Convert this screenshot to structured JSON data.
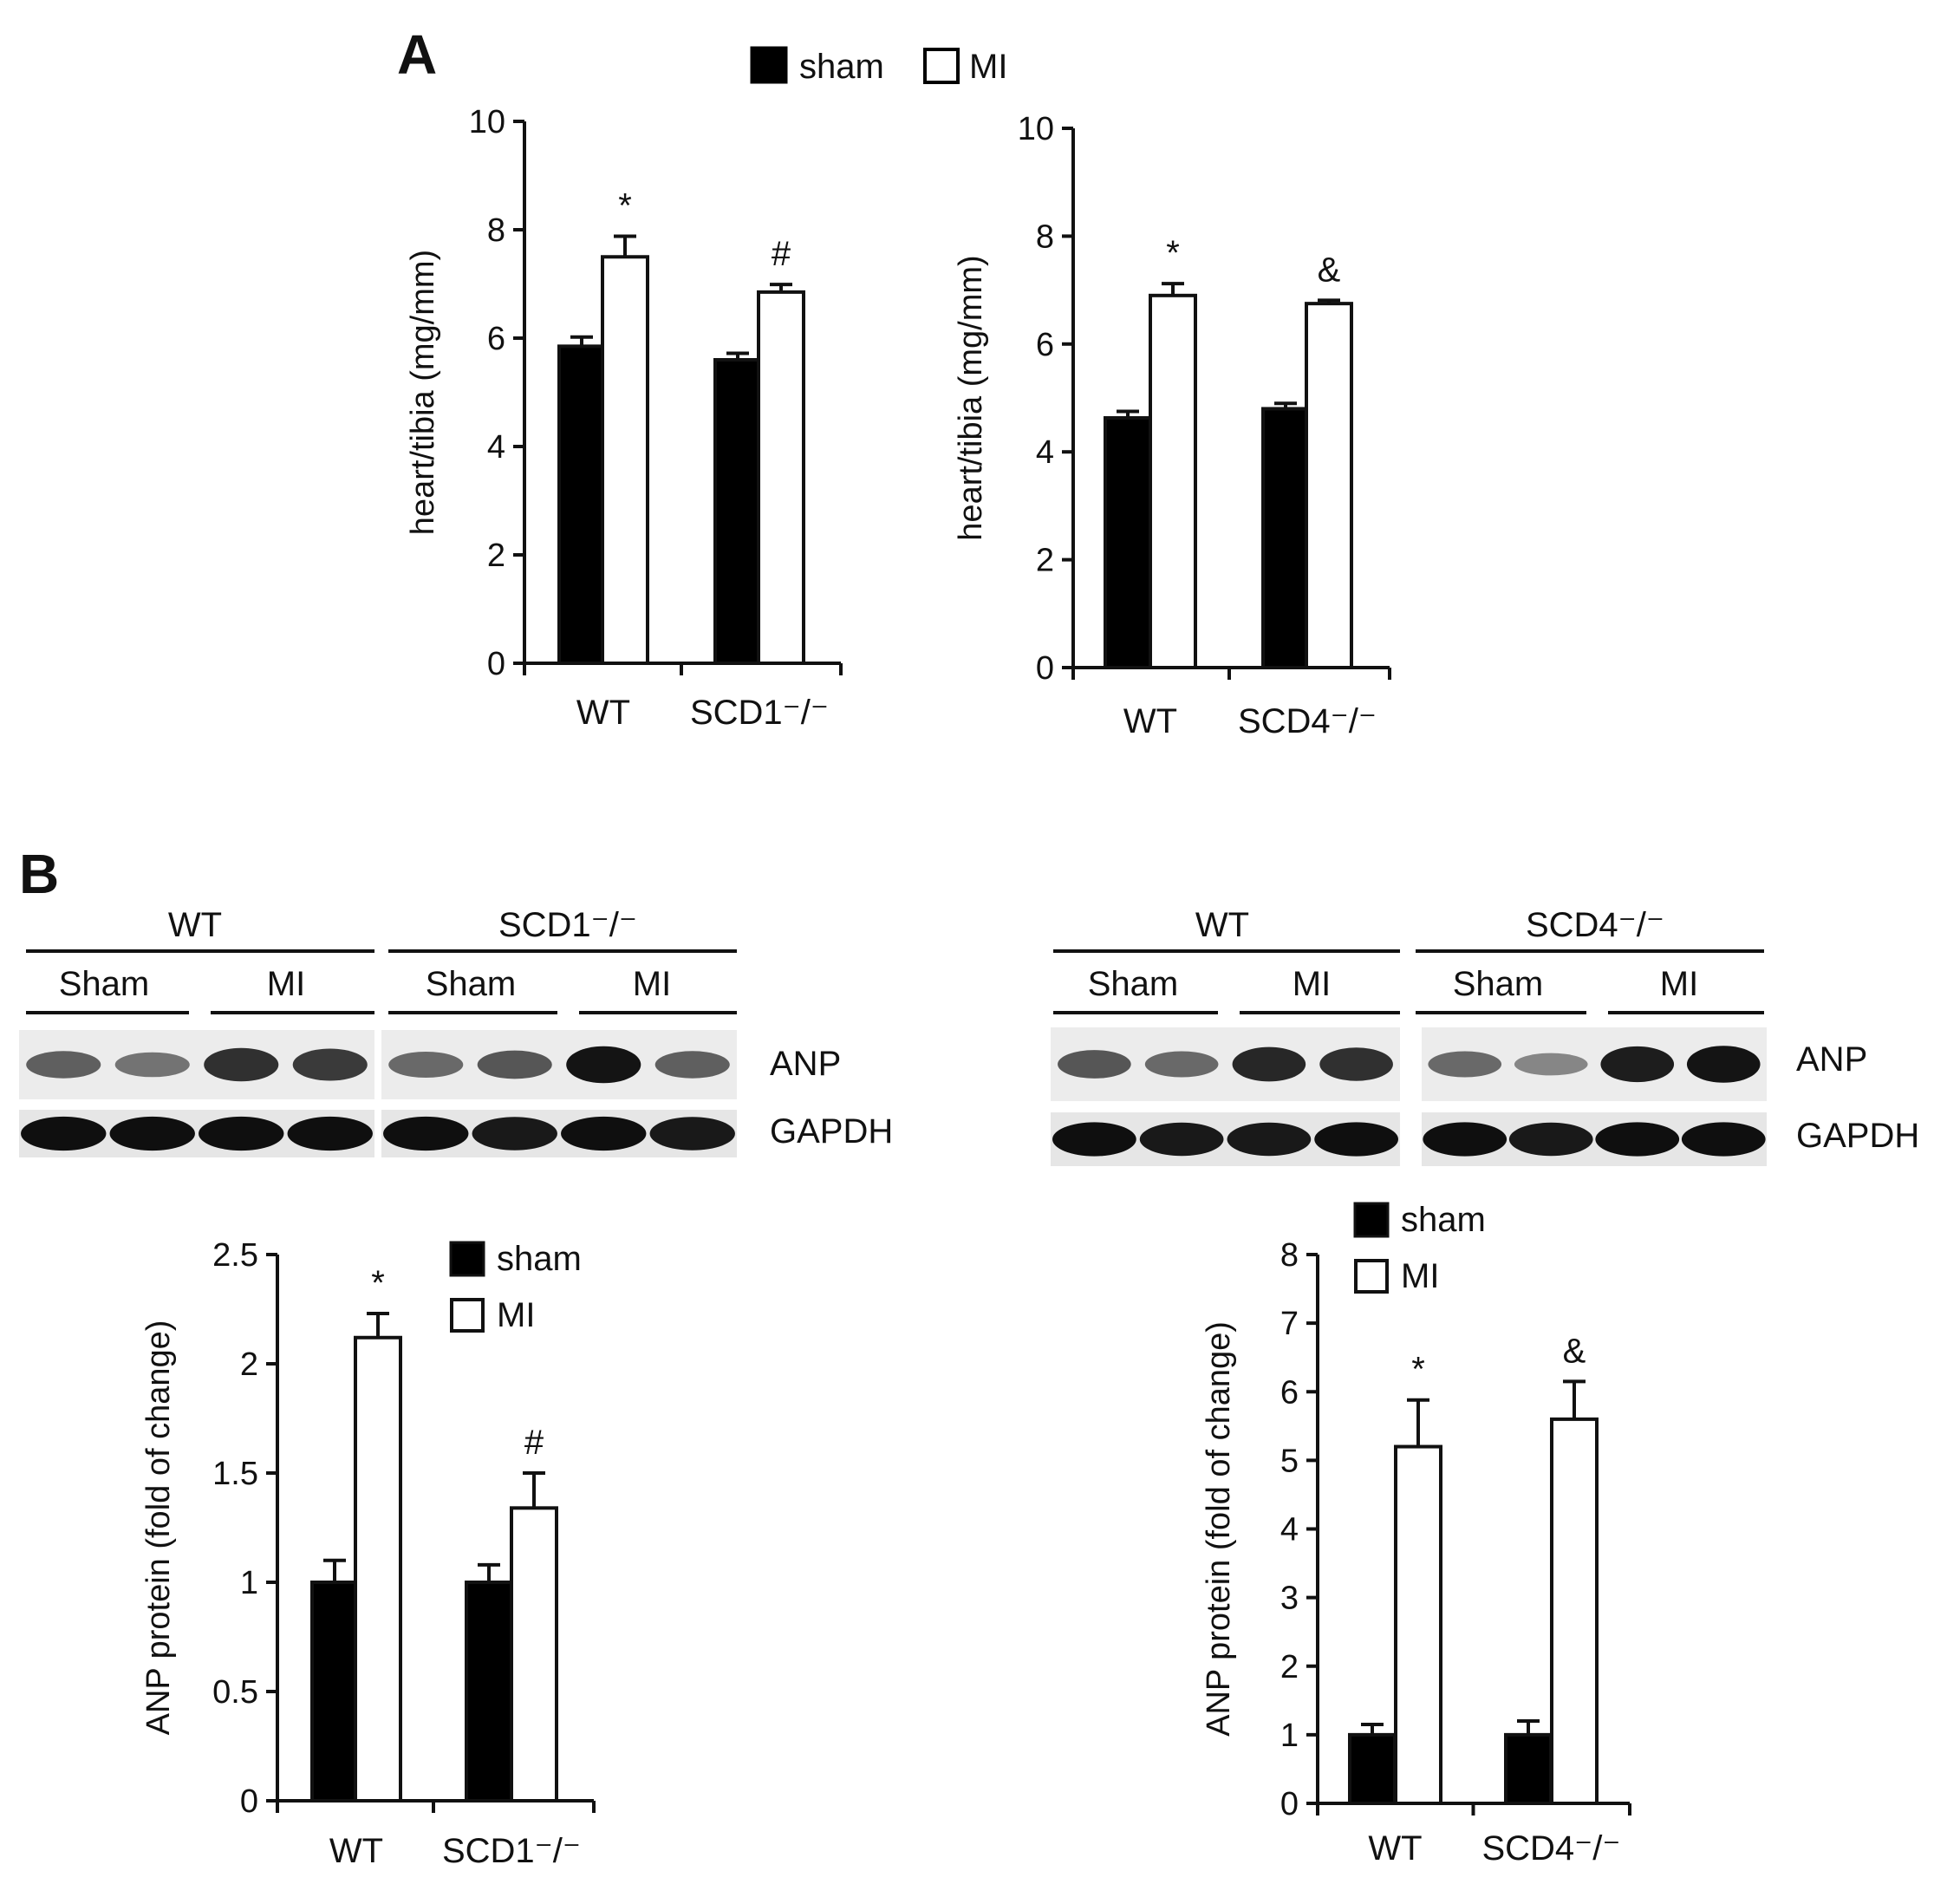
{
  "panels": {
    "a": "A",
    "b": "B"
  },
  "legend_series": [
    "sham",
    "MI"
  ],
  "colors": {
    "sham": "#000000",
    "MI": "#ffffff",
    "axis": "#111111"
  },
  "blots": [
    {
      "groups": [
        "WT",
        "SCD1⁻/⁻"
      ],
      "subgroups": [
        "Sham",
        "MI",
        "Sham",
        "MI"
      ],
      "rows": [
        "ANP",
        "GAPDH"
      ],
      "anp_intensity": [
        0.55,
        0.45,
        0.8,
        0.75,
        0.5,
        0.6,
        0.95,
        0.55
      ],
      "gapdh_intensity": [
        0.95,
        0.95,
        0.95,
        0.95,
        0.95,
        0.9,
        0.95,
        0.9
      ]
    },
    {
      "groups": [
        "WT",
        "SCD4⁻/⁻"
      ],
      "subgroups": [
        "Sham",
        "MI",
        "Sham",
        "MI"
      ],
      "rows": [
        "ANP",
        "GAPDH"
      ],
      "anp_intensity": [
        0.6,
        0.5,
        0.85,
        0.8,
        0.5,
        0.35,
        0.9,
        0.95
      ],
      "gapdh_intensity": [
        0.95,
        0.9,
        0.9,
        0.95,
        0.95,
        0.9,
        0.95,
        0.95
      ]
    }
  ],
  "chart_data": [
    {
      "type": "bar",
      "ylabel": "heart/tibia (mg/mm)",
      "categories": [
        "WT",
        "SCD1⁻/⁻"
      ],
      "ylim": [
        0,
        10
      ],
      "yticks": [
        "0",
        "2",
        "4",
        "6",
        "8",
        "10"
      ],
      "series": [
        {
          "name": "sham",
          "values": [
            5.85,
            5.6
          ],
          "errors": [
            0.17,
            0.12
          ]
        },
        {
          "name": "MI",
          "values": [
            7.5,
            6.85
          ],
          "errors": [
            0.38,
            0.14
          ]
        }
      ],
      "annotations": [
        "*",
        "#"
      ]
    },
    {
      "type": "bar",
      "ylabel": "heart/tibia (mg/mm)",
      "categories": [
        "WT",
        "SCD4⁻/⁻"
      ],
      "ylim": [
        0,
        10
      ],
      "yticks": [
        "0",
        "2",
        "4",
        "6",
        "8",
        "10"
      ],
      "series": [
        {
          "name": "sham",
          "values": [
            4.63,
            4.8
          ],
          "errors": [
            0.12,
            0.1
          ]
        },
        {
          "name": "MI",
          "values": [
            6.9,
            6.75
          ],
          "errors": [
            0.22,
            0.06
          ]
        }
      ],
      "annotations": [
        "*",
        "&"
      ]
    },
    {
      "type": "bar",
      "ylabel": "ANP protein (fold of change)",
      "categories": [
        "WT",
        "SCD1⁻/⁻"
      ],
      "ylim": [
        0,
        2.5
      ],
      "yticks": [
        "0",
        "0.5",
        "1",
        "1.5",
        "2",
        "2.5"
      ],
      "series": [
        {
          "name": "sham",
          "values": [
            1.0,
            1.0
          ],
          "errors": [
            0.1,
            0.08
          ]
        },
        {
          "name": "MI",
          "values": [
            2.12,
            1.34
          ],
          "errors": [
            0.11,
            0.16
          ]
        }
      ],
      "annotations": [
        "*",
        "#"
      ]
    },
    {
      "type": "bar",
      "ylabel": "ANP protein (fold of change)",
      "categories": [
        "WT",
        "SCD4⁻/⁻"
      ],
      "ylim": [
        0,
        8
      ],
      "yticks": [
        "0",
        "1",
        "2",
        "3",
        "4",
        "5",
        "6",
        "7",
        "8"
      ],
      "series": [
        {
          "name": "sham",
          "values": [
            1.0,
            1.0
          ],
          "errors": [
            0.15,
            0.2
          ]
        },
        {
          "name": "MI",
          "values": [
            5.2,
            5.6
          ],
          "errors": [
            0.68,
            0.55
          ]
        }
      ],
      "annotations": [
        "*",
        "&"
      ]
    }
  ]
}
